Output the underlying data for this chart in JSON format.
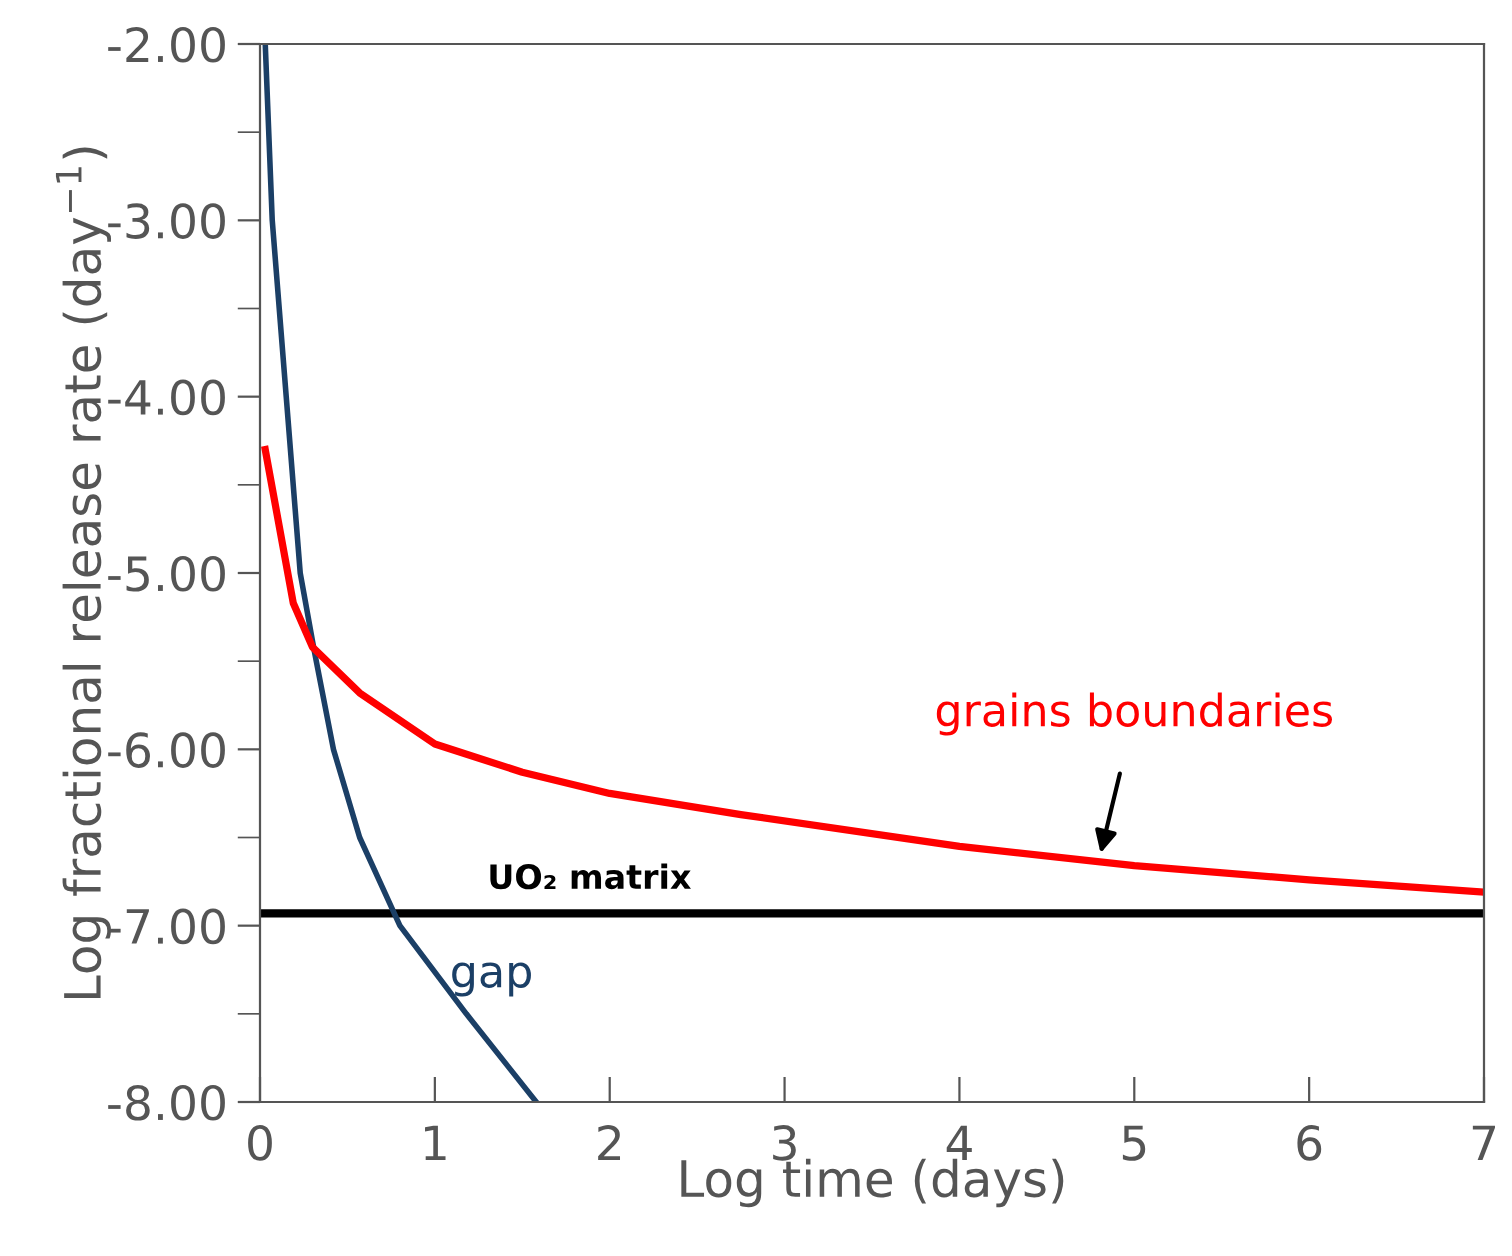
{
  "chart_data": {
    "type": "line",
    "xlabel": "Log time (days)",
    "ylabel": "Log fractional release rate (day$^{−1}$)",
    "xlim": [
      0,
      7
    ],
    "ylim": [
      -8,
      -2
    ],
    "xticks": [
      0,
      1,
      2,
      3,
      4,
      5,
      6,
      7
    ],
    "yticks": [
      {
        "value": -8,
        "label": "-8.00"
      },
      {
        "value": -7.5,
        "label": null
      },
      {
        "value": -7,
        "label": "-7.00"
      },
      {
        "value": -6.5,
        "label": null
      },
      {
        "value": -6,
        "label": "-6.00"
      },
      {
        "value": -5.5,
        "label": null
      },
      {
        "value": -5,
        "label": "-5.00"
      },
      {
        "value": -4.5,
        "label": null
      },
      {
        "value": -4,
        "label": "-4.00"
      },
      {
        "value": -3.5,
        "label": null
      },
      {
        "value": -3,
        "label": "-3.00"
      },
      {
        "value": -2.5,
        "label": null
      },
      {
        "value": -2,
        "label": "-2.00"
      }
    ],
    "grid": false,
    "legend": false,
    "marker": "none",
    "line_style": "solid",
    "series": [
      {
        "color": "#1b3f66",
        "x": [
          0.03,
          0.07,
          0.15,
          0.23,
          0.31,
          0.42,
          0.57,
          0.8,
          1.18,
          1.58
        ],
        "values": [
          -2.0,
          -3.0,
          -4.0,
          -5.0,
          -5.44,
          -6.0,
          -6.5,
          -7.0,
          -7.5,
          -8.0
        ]
      },
      {
        "color": "#ff0000",
        "x": [
          0.03,
          0.19,
          0.3,
          0.57,
          1.0,
          1.5,
          2.0,
          2.75,
          4.0,
          5.0,
          6.0,
          7.0
        ],
        "values": [
          -4.3,
          -5.17,
          -5.42,
          -5.68,
          -5.97,
          -6.13,
          -6.25,
          -6.37,
          -6.55,
          -6.66,
          -6.74,
          -6.81
        ]
      }
    ],
    "ref_lines": [
      {
        "axis": "y",
        "value": -6.93,
        "label": "UO₂ matrix",
        "color": "#000000"
      }
    ],
    "annotations": [
      "gap",
      {
        "text": "grains boundaries",
        "x": 4.8,
        "y": -6.62
      }
    ]
  }
}
